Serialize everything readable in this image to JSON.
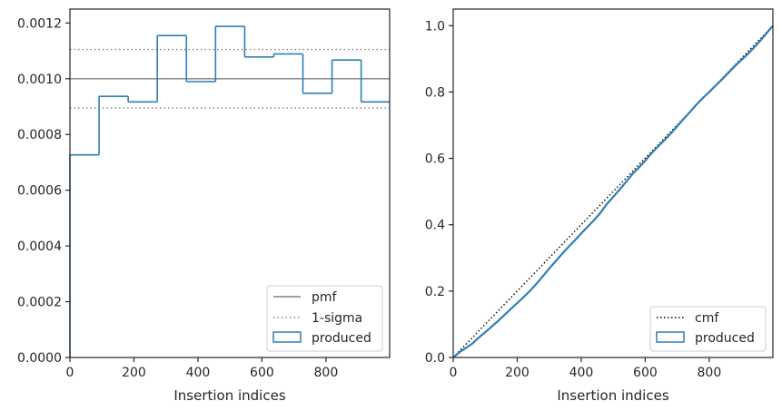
{
  "chart_data": [
    {
      "type": "step",
      "xlabel": "Insertion indices",
      "ylabel": "",
      "xlim": [
        0,
        999
      ],
      "ylim": [
        0,
        0.00125
      ],
      "xticks": [
        0,
        200,
        400,
        600,
        800
      ],
      "yticks": [
        0.0,
        0.0002,
        0.0004,
        0.0006,
        0.0008,
        0.001,
        0.0012
      ],
      "xtick_labels": [
        "0",
        "200",
        "400",
        "600",
        "800"
      ],
      "ytick_labels": [
        "0.0000",
        "0.0002",
        "0.0004",
        "0.0006",
        "0.0008",
        "0.0010",
        "0.0012"
      ],
      "grid": false,
      "legend_position": "lower-right",
      "legend": [
        "pmf",
        "1-sigma",
        "produced"
      ],
      "reference_lines": {
        "pmf": 0.001,
        "sigma_upper": 0.001105,
        "sigma_lower": 0.000895
      },
      "series": [
        {
          "name": "produced",
          "bin_edges": [
            0,
            91,
            182,
            273,
            364,
            455,
            546,
            637,
            728,
            819,
            910,
            999
          ],
          "values": [
            0.000727,
            0.000937,
            0.000917,
            0.001155,
            0.00099,
            0.001188,
            0.001078,
            0.001089,
            0.000948,
            0.001067,
            0.000917
          ]
        }
      ],
      "colors": {
        "produced": "#2f7fb5",
        "reference": "#808080"
      }
    },
    {
      "type": "line",
      "xlabel": "Insertion indices",
      "ylabel": "",
      "xlim": [
        0,
        999
      ],
      "ylim": [
        0,
        1.05
      ],
      "xticks": [
        0,
        200,
        400,
        600,
        800
      ],
      "yticks": [
        0.0,
        0.2,
        0.4,
        0.6,
        0.8,
        1.0
      ],
      "xtick_labels": [
        "0",
        "200",
        "400",
        "600",
        "800"
      ],
      "ytick_labels": [
        "0.0",
        "0.2",
        "0.4",
        "0.6",
        "0.8",
        "1.0"
      ],
      "grid": false,
      "legend_position": "lower-right",
      "legend": [
        "cmf",
        "produced"
      ],
      "series": [
        {
          "name": "cmf",
          "x": [
            0,
            999
          ],
          "y": [
            0,
            1.0
          ]
        },
        {
          "name": "produced",
          "x": [
            0,
            20,
            40,
            60,
            80,
            100,
            120,
            140,
            160,
            180,
            200,
            220,
            240,
            260,
            280,
            300,
            320,
            340,
            360,
            380,
            400,
            420,
            440,
            460,
            480,
            500,
            520,
            540,
            560,
            580,
            600,
            620,
            640,
            660,
            680,
            700,
            720,
            740,
            760,
            780,
            800,
            820,
            840,
            860,
            880,
            900,
            920,
            940,
            960,
            980,
            999
          ],
          "y": [
            0,
            0.016,
            0.029,
            0.042,
            0.06,
            0.076,
            0.093,
            0.11,
            0.128,
            0.146,
            0.164,
            0.182,
            0.201,
            0.222,
            0.245,
            0.268,
            0.29,
            0.312,
            0.333,
            0.353,
            0.374,
            0.394,
            0.414,
            0.436,
            0.462,
            0.484,
            0.506,
            0.529,
            0.553,
            0.572,
            0.593,
            0.616,
            0.636,
            0.655,
            0.675,
            0.697,
            0.719,
            0.74,
            0.762,
            0.782,
            0.8,
            0.819,
            0.838,
            0.858,
            0.878,
            0.896,
            0.914,
            0.934,
            0.955,
            0.978,
            1.0
          ]
        }
      ],
      "colors": {
        "produced": "#2f7fb5",
        "cmf": "#000000"
      }
    }
  ]
}
